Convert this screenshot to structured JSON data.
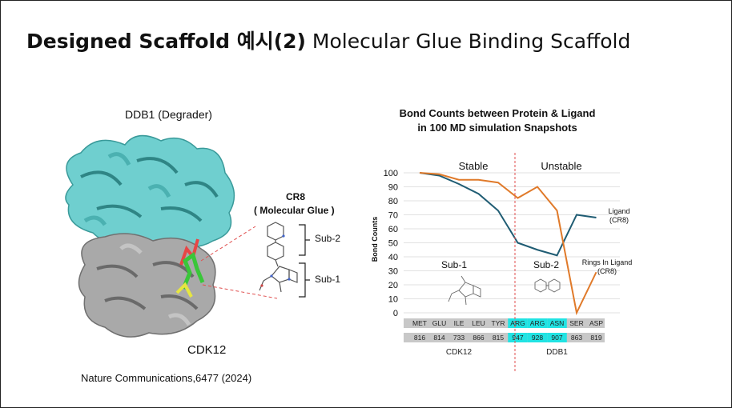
{
  "slide": {
    "title_bold": "Designed Scaffold 예시(2)",
    "title_rest": "Molecular Glue Binding Scaffold"
  },
  "figure": {
    "ddb1_label": "DDB1 (Degrader)",
    "cdk12_label": "CDK12",
    "cr8_label": "CR8",
    "glue_label": "( Molecular Glue )",
    "sub2_label": "Sub-2",
    "sub1_label": "Sub-1",
    "citation": "Nature Communications,6477 (2024)",
    "colors": {
      "ddb1": "#6fcfcf",
      "cdk12": "#a9a9a9",
      "ligand": "#39c639"
    }
  },
  "chart_data": {
    "type": "line",
    "title": "Bond Counts between Protein & Ligand",
    "subtitle": "in  100 MD simulation Snapshots",
    "ylabel": "Bond Counts",
    "ylim": [
      0,
      100
    ],
    "yticks": [
      0,
      10,
      20,
      30,
      40,
      50,
      60,
      70,
      80,
      90,
      100
    ],
    "categories": [
      "MET",
      "GLU",
      "ILE",
      "LEU",
      "TYR",
      "ARG",
      "ARG",
      "ASN",
      "SER",
      "ASP"
    ],
    "residue_numbers": [
      "816",
      "814",
      "733",
      "866",
      "815",
      "947",
      "928",
      "907",
      "863",
      "819"
    ],
    "highlighted": [
      false,
      false,
      false,
      false,
      false,
      true,
      true,
      true,
      false,
      false
    ],
    "groups": [
      {
        "label": "CDK12",
        "start": 0,
        "end": 4
      },
      {
        "label": "DDB1",
        "start": 5,
        "end": 9
      }
    ],
    "region_labels": {
      "stable": "Stable",
      "unstable": "Unstable"
    },
    "series": [
      {
        "name_line1": "Ligand",
        "name_line2": "(CR8)",
        "color": "#1f5c73",
        "values": [
          100,
          98,
          92,
          85,
          73,
          50,
          45,
          41,
          70,
          68
        ]
      },
      {
        "name_line1": "Rings In Ligand",
        "name_line2": "(CR8)",
        "color": "#e07a2a",
        "values": [
          100,
          99,
          95,
          95,
          93,
          82,
          90,
          73,
          0,
          29
        ]
      }
    ],
    "inset_labels": {
      "sub1": "Sub-1",
      "sub2": "Sub-2"
    },
    "colors": {
      "highlight": "#21e3e3",
      "band": "#c8c8c8",
      "divider": "#e05050"
    }
  }
}
